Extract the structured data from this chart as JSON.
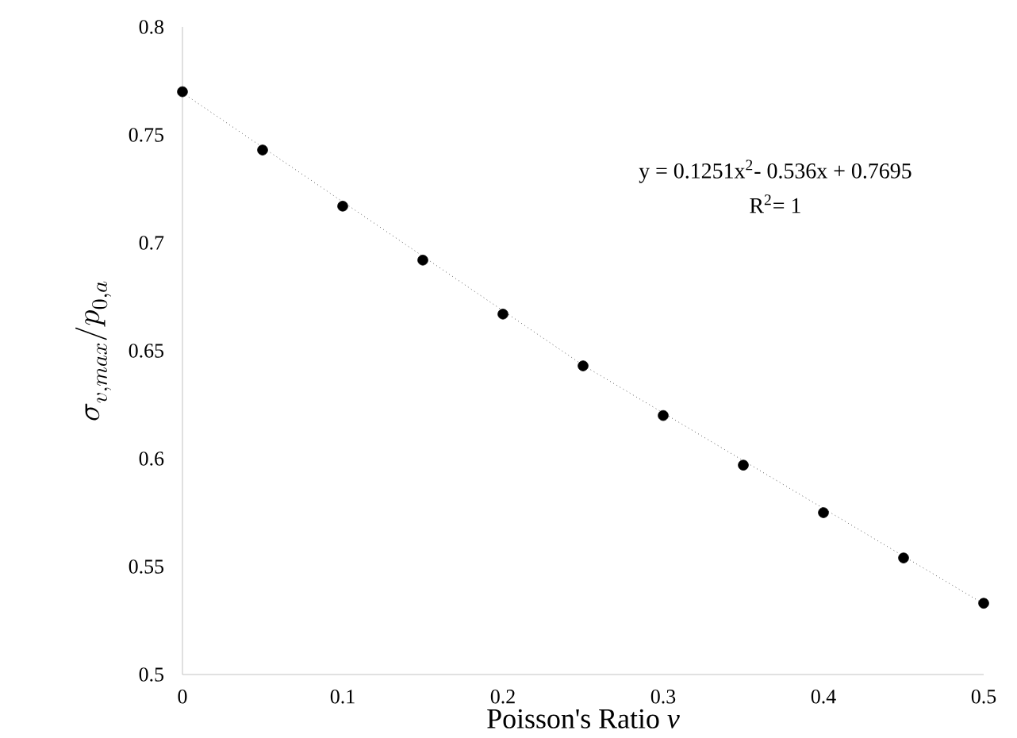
{
  "chart_data": {
    "type": "scatter",
    "xlabel": "Poisson's Ratio *v*",
    "ylabel": "\\sigma_{v,max} / p_{0,a}",
    "x": [
      0,
      0.05,
      0.1,
      0.15,
      0.2,
      0.25,
      0.3,
      0.35,
      0.4,
      0.45,
      0.5
    ],
    "series": [
      {
        "color": "#000000",
        "marker": "circle",
        "values": [
          0.77,
          0.743,
          0.717,
          0.692,
          0.667,
          0.643,
          0.62,
          0.597,
          0.575,
          0.554,
          0.533
        ]
      },
      {
        "type": "line",
        "color": "#000000",
        "line_style": "dotted",
        "marker": "none",
        "x": [
          0,
          0.25,
          0.5
        ],
        "values": [
          0.7695,
          0.6433,
          0.5327
        ]
      }
    ],
    "xlim": [
      0,
      0.5
    ],
    "xticks": [
      0,
      0.1,
      0.2,
      0.3,
      0.4,
      0.5
    ],
    "ylim": [
      0.5,
      0.8
    ],
    "yticks": [
      0.5,
      0.55,
      0.6,
      0.65,
      0.7,
      0.75,
      0.8
    ],
    "annotations": [
      "y = 0.1251x$^{2}$- 0.536x + 0.7695",
      "R$^{2}$= 1"
    ],
    "grid": false,
    "legend": false
  }
}
